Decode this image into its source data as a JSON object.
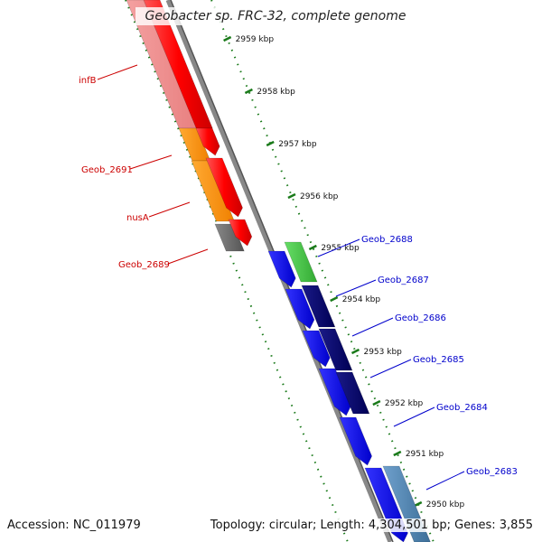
{
  "title": "Geobacter sp. FRC-32, complete genome",
  "footer": {
    "accession": "Accession: NC_011979",
    "summary": "Topology: circular; Length: 4,304,501 bp; Genes: 3,855"
  },
  "ticks": [
    "2959 kbp",
    "2958 kbp",
    "2957 kbp",
    "2956 kbp",
    "2955 kbp",
    "2954 kbp",
    "2953 kbp",
    "2952 kbp",
    "2951 kbp",
    "2950 kbp"
  ],
  "genes_left": [
    "infB",
    "Geob_2691",
    "nusA",
    "Geob_2689"
  ],
  "genes_right": [
    "Geob_2688",
    "Geob_2687",
    "Geob_2686",
    "Geob_2685",
    "Geob_2684",
    "Geob_2683"
  ],
  "colors": {
    "left_label": "#cc0000",
    "right_label": "#0000cc",
    "tick": "#1a7a1a",
    "backbone": "#888888"
  }
}
